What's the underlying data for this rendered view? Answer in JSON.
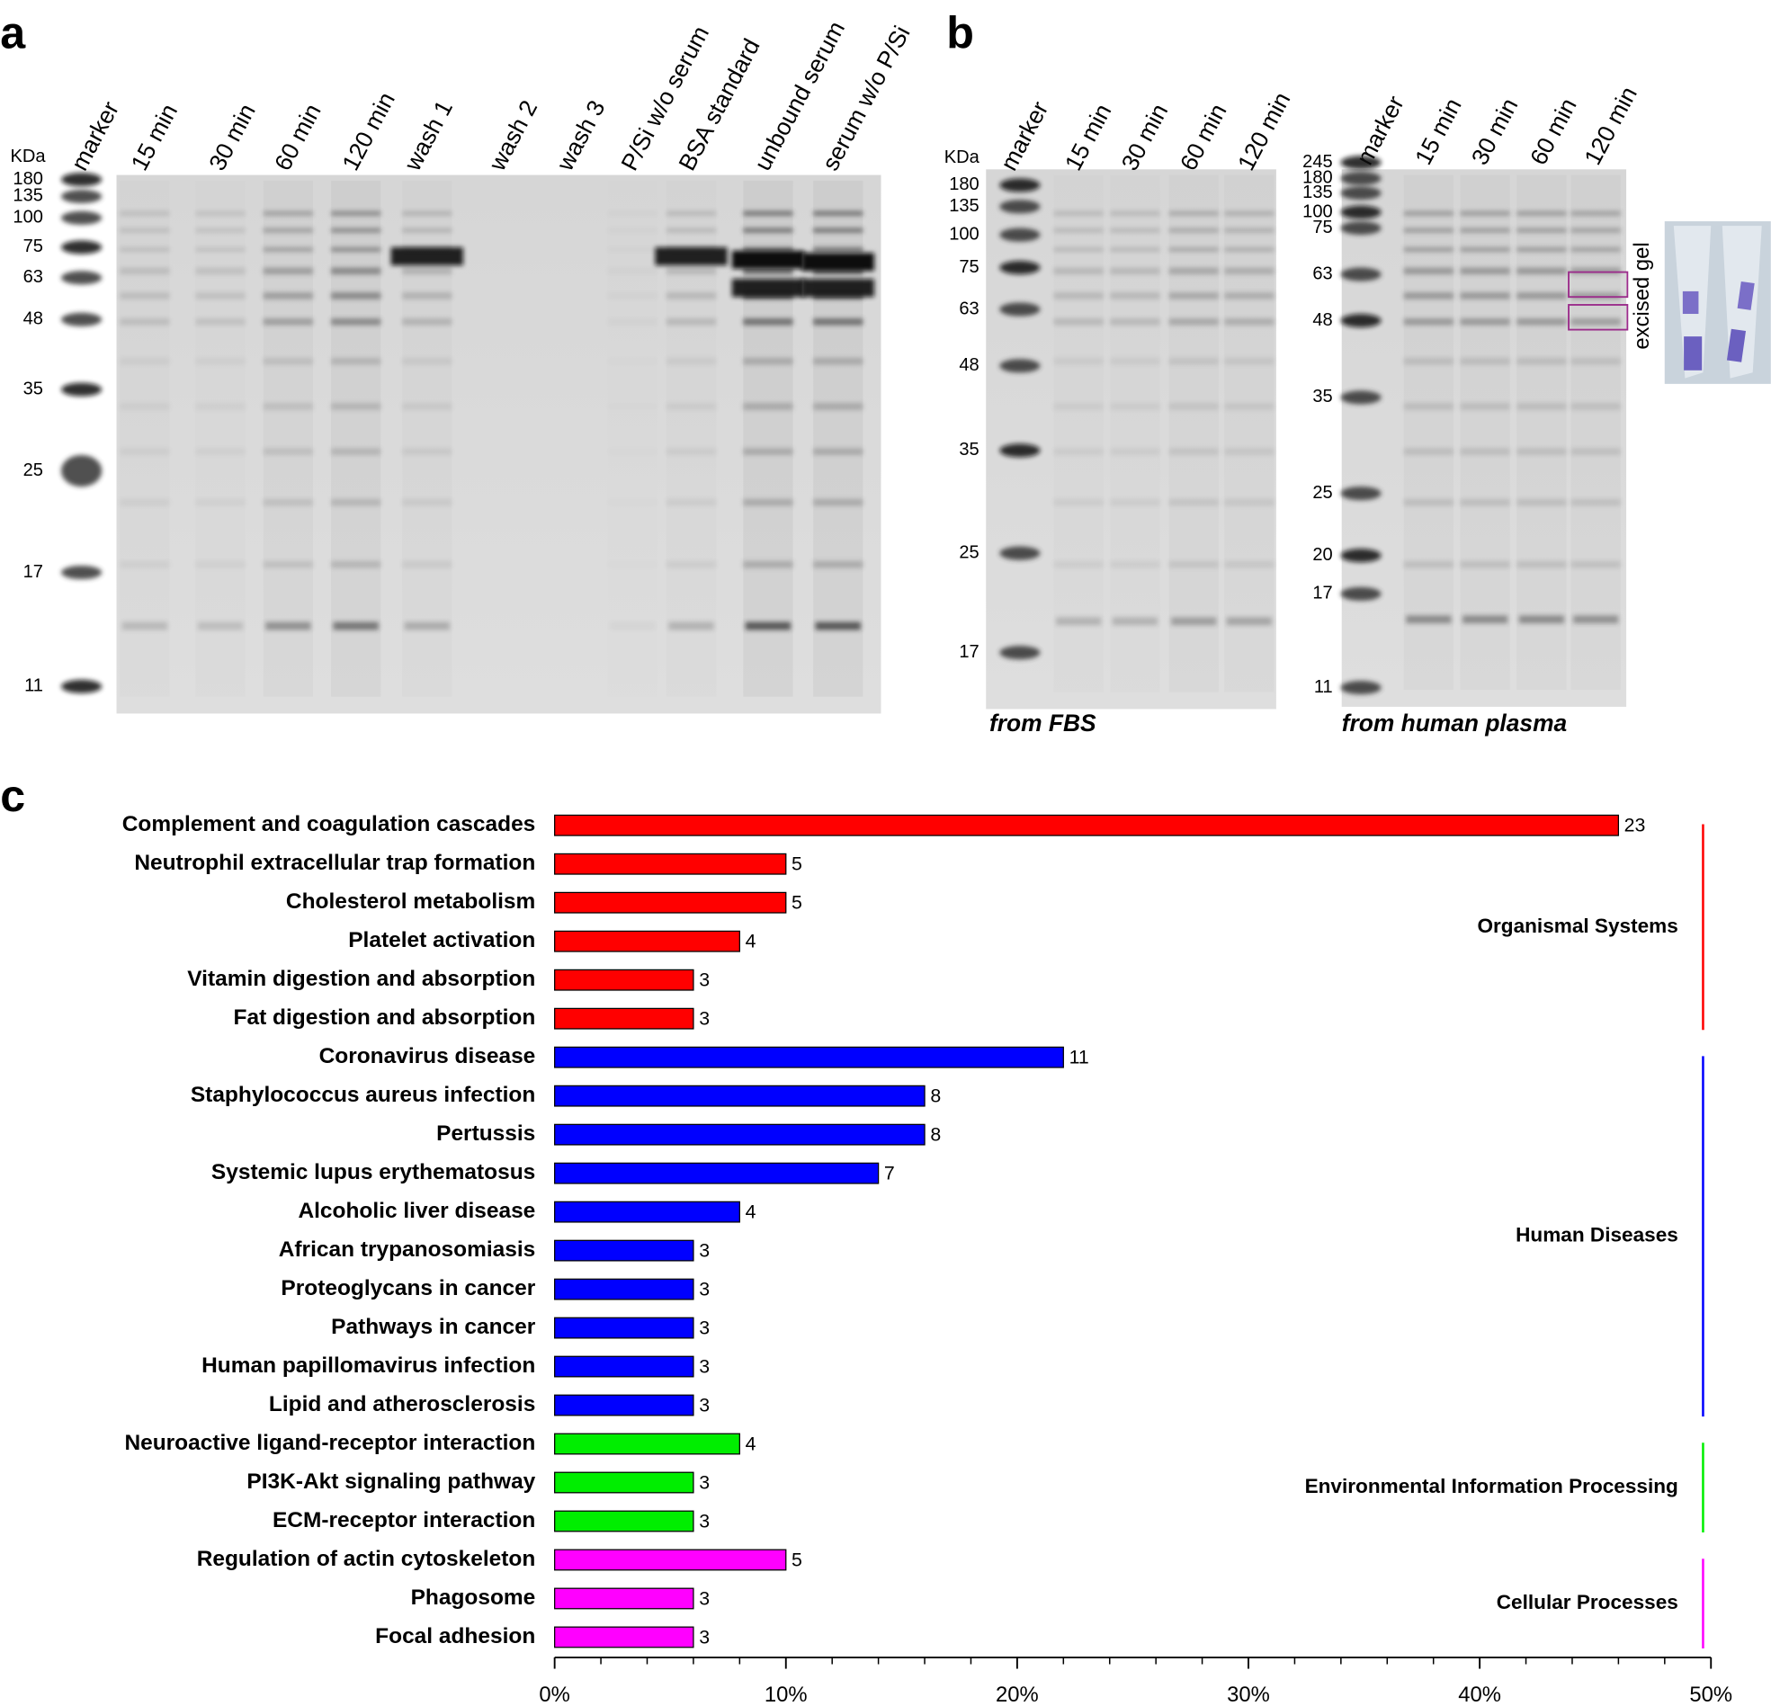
{
  "panel_a": {
    "label": "a",
    "unit": "KDa",
    "lanes": [
      "marker",
      "15 min",
      "30 min",
      "60 min",
      "120 min",
      "wash 1",
      "wash 2",
      "wash 3",
      "P/Si w/o serum",
      "BSA standard",
      "unbound serum",
      "serum w/o P/Si"
    ],
    "markers": [
      180,
      135,
      100,
      75,
      63,
      48,
      35,
      25,
      17,
      11
    ]
  },
  "panel_b": {
    "label": "b",
    "gels": [
      {
        "unit": "KDa",
        "lanes": [
          "marker",
          "15 min",
          "30 min",
          "60 min",
          "120 min"
        ],
        "markers": [
          180,
          135,
          100,
          75,
          63,
          48,
          35,
          25,
          17
        ],
        "caption": "from FBS"
      },
      {
        "lanes": [
          "marker",
          "15 min",
          "30 min",
          "60 min",
          "120 min"
        ],
        "markers": [
          245,
          180,
          135,
          100,
          75,
          63,
          48,
          35,
          25,
          20,
          17,
          11
        ],
        "caption": "from human plasma",
        "annotation": "excised gel"
      }
    ]
  },
  "panel_c_label": "c",
  "chart_data": {
    "type": "bar",
    "orientation": "horizontal",
    "xlim": [
      0,
      50
    ],
    "xticks": [
      {
        "value": 0,
        "label": "0%"
      },
      {
        "value": 10,
        "label": "10%"
      },
      {
        "value": 20,
        "label": "20%"
      },
      {
        "value": 30,
        "label": "30%"
      },
      {
        "value": 40,
        "label": "40%"
      },
      {
        "value": 50,
        "label": "50%"
      }
    ],
    "xminorticks": [
      2,
      4,
      6,
      8,
      12,
      14,
      16,
      18,
      22,
      24,
      26,
      28,
      32,
      34,
      36,
      38,
      42,
      44,
      46,
      48
    ],
    "series": [
      {
        "name": "Organismal Systems",
        "color": "#ff0000",
        "categories": [
          "Complement and coagulation cascades",
          "Neutrophil extracellular trap formation",
          "Cholesterol metabolism",
          "Platelet activation",
          "Vitamin digestion and absorption",
          "Fat digestion and absorption"
        ],
        "values": [
          46,
          10,
          10,
          8,
          6,
          6
        ],
        "counts": [
          23,
          5,
          5,
          4,
          3,
          3
        ]
      },
      {
        "name": "Human Diseases",
        "color": "#0000ff",
        "categories": [
          "Coronavirus disease",
          "Staphylococcus aureus infection",
          "Pertussis",
          "Systemic lupus erythematosus",
          "Alcoholic liver disease",
          "African trypanosomiasis",
          "Proteoglycans in cancer",
          "Pathways in cancer",
          "Human papillomavirus infection",
          "Lipid and atherosclerosis"
        ],
        "values": [
          22,
          16,
          16,
          14,
          8,
          6,
          6,
          6,
          6,
          6
        ],
        "counts": [
          11,
          8,
          8,
          7,
          4,
          3,
          3,
          3,
          3,
          3
        ]
      },
      {
        "name": "Environmental Information Processing",
        "color": "#00ee00",
        "categories": [
          "Neuroactive ligand-receptor interaction",
          "PI3K-Akt signaling pathway",
          "ECM-receptor interaction"
        ],
        "values": [
          8,
          6,
          6
        ],
        "counts": [
          4,
          3,
          3
        ]
      },
      {
        "name": "Cellular Processes",
        "color": "#ff00ff",
        "categories": [
          "Regulation of actin cytoskeleton",
          "Phagosome",
          "Focal adhesion"
        ],
        "values": [
          10,
          6,
          6
        ],
        "counts": [
          5,
          3,
          3
        ]
      }
    ]
  }
}
